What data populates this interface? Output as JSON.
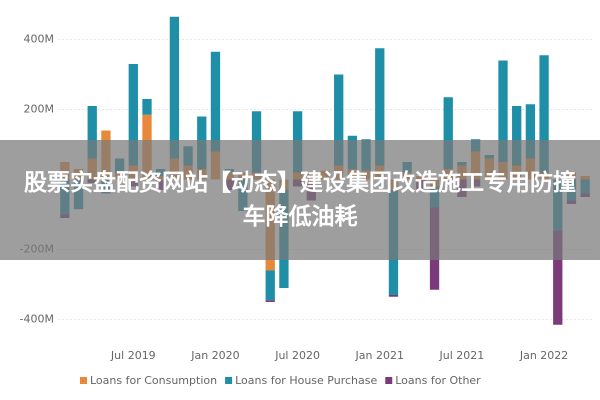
{
  "chart_data": {
    "type": "bar",
    "stacked": true,
    "categories": [
      null,
      null,
      null,
      null,
      null,
      "Jul 2019",
      null,
      null,
      null,
      null,
      null,
      "Jan 2020",
      null,
      null,
      null,
      null,
      null,
      "Jul 2020",
      null,
      null,
      null,
      null,
      null,
      "Jan 2021",
      null,
      null,
      null,
      null,
      null,
      "Jul 2021",
      null,
      null,
      null,
      null,
      null,
      "Jan 2022",
      null,
      null,
      null
    ],
    "series": [
      {
        "name": "Loans for Consumption",
        "color": "#e8883a",
        "values": [
          50,
          30,
          60,
          140,
          20,
          40,
          185,
          10,
          60,
          40,
          30,
          80,
          20,
          20,
          20,
          -260,
          -30,
          20,
          20,
          25,
          40,
          30,
          25,
          40,
          -30,
          20,
          10,
          -20,
          30,
          40,
          80,
          60,
          50,
          40,
          60,
          20,
          0,
          20,
          10
        ]
      },
      {
        "name": "Loans for House Purchase",
        "color": "#1f8fa8",
        "values": [
          -100,
          -85,
          150,
          -40,
          40,
          290,
          45,
          20,
          405,
          55,
          150,
          285,
          10,
          -90,
          175,
          -85,
          -280,
          175,
          0,
          0,
          260,
          95,
          90,
          335,
          -300,
          30,
          0,
          -60,
          205,
          10,
          35,
          10,
          290,
          170,
          155,
          335,
          -145,
          -60,
          -40
        ]
      },
      {
        "name": "Loans for Other",
        "color": "#7b3b7a",
        "values": [
          -10,
          0,
          -10,
          0,
          0,
          -20,
          0,
          -30,
          0,
          0,
          0,
          0,
          -30,
          0,
          0,
          -5,
          0,
          -20,
          -60,
          0,
          0,
          0,
          0,
          0,
          -5,
          0,
          -30,
          -235,
          0,
          -50,
          -20,
          0,
          0,
          0,
          0,
          0,
          -270,
          -10,
          -10
        ]
      }
    ],
    "ylim": [
      -470,
      490
    ],
    "yticks": [
      {
        "value": -400,
        "label": "-400M"
      },
      {
        "value": -200,
        "label": "-200M"
      },
      {
        "value": 200,
        "label": "200M"
      },
      {
        "value": 400,
        "label": "400M"
      }
    ],
    "grid": true
  },
  "banner": {
    "text": "股票实盘配资网站【动态】建设集团改造施工专用防撞车降低油耗"
  }
}
